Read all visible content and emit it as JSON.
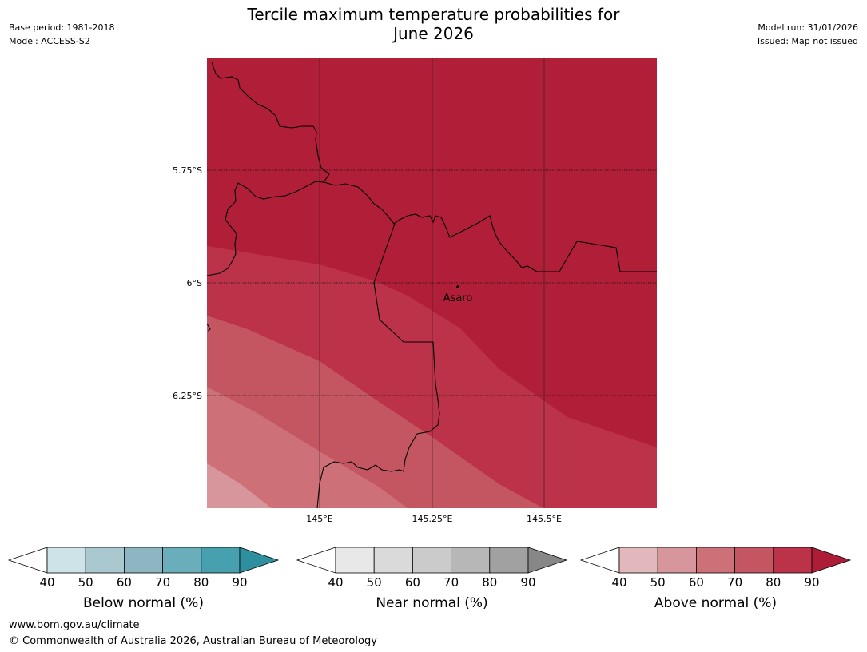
{
  "title_line1": "Tercile maximum temperature probabilities for",
  "title_line2": "June 2026",
  "meta_left": {
    "base_period": "Base period: 1981-2018",
    "model": "Model: ACCESS-S2"
  },
  "meta_right": {
    "model_run": "Model run: 31/01/2026",
    "issued": "Issued: Map not issued"
  },
  "map": {
    "lat_labels": [
      "5.75°S",
      "6°S",
      "6.25°S"
    ],
    "lon_labels": [
      "145°E",
      "145.25°E",
      "145.5°E"
    ],
    "place": "Asaro"
  },
  "legends": [
    {
      "label": "Below normal (%)",
      "ticks": [
        "40",
        "50",
        "60",
        "70",
        "80",
        "90"
      ],
      "colors": [
        "#cde3e8",
        "#a9c8cf",
        "#8bb6c2",
        "#6aaebb",
        "#47a0ae",
        "#2e8f9f"
      ]
    },
    {
      "label": "Near normal (%)",
      "ticks": [
        "40",
        "50",
        "60",
        "70",
        "80",
        "90"
      ],
      "colors": [
        "#e8e8e8",
        "#dadada",
        "#cbcbcb",
        "#b7b7b7",
        "#a1a1a1",
        "#878787"
      ]
    },
    {
      "label": "Above normal (%)",
      "ticks": [
        "40",
        "50",
        "60",
        "70",
        "80",
        "90"
      ],
      "colors": [
        "#e2b8bd",
        "#d7959c",
        "#cd7078",
        "#c45661",
        "#bb3249",
        "#ae1d37"
      ]
    }
  ],
  "footer": {
    "url": "www.bom.gov.au/climate",
    "copyright": "© Commonwealth of Australia 2026, Australian Bureau of Meteorology"
  },
  "colors": {
    "band_90": "#b01e38",
    "band_80": "#bb3249",
    "band_70": "#c45661",
    "band_60": "#cd7078",
    "band_50": "#d7959c"
  }
}
